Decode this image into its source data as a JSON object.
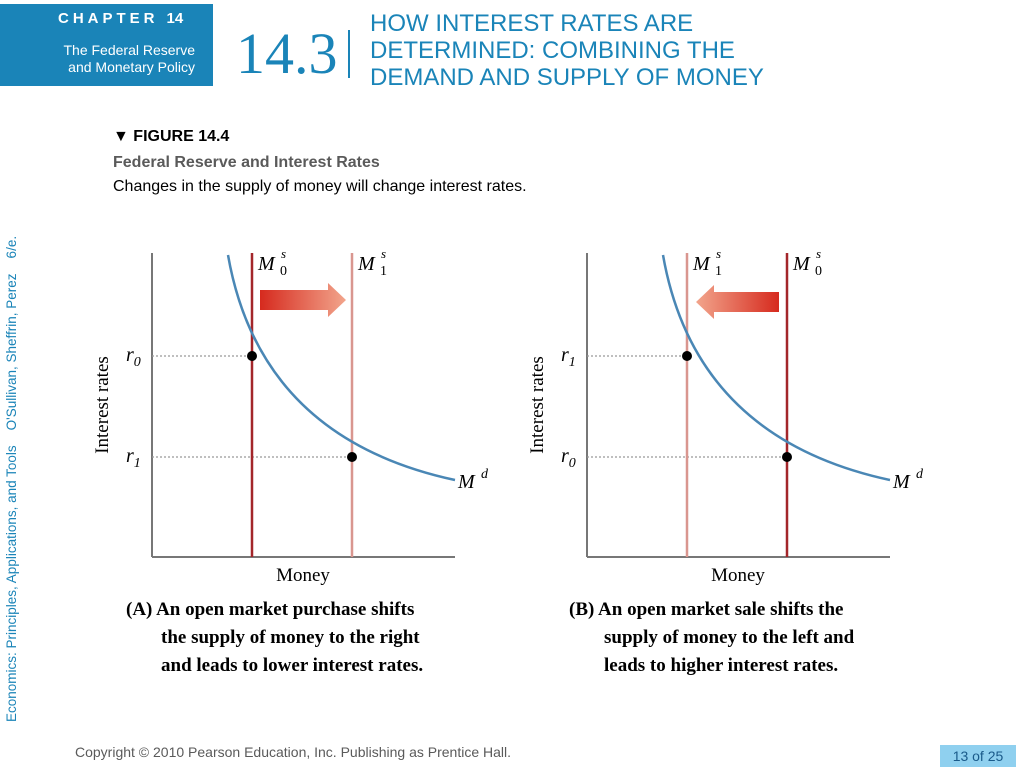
{
  "header": {
    "chapter_label": "CHAPTER",
    "chapter_number": "14",
    "chapter_title_line1": "The Federal Reserve",
    "chapter_title_line2": "and Monetary Policy",
    "section_number": "14.3",
    "section_title_line1": "HOW INTEREST RATES ARE",
    "section_title_line2": "DETERMINED: COMBINING THE",
    "section_title_line3": "DEMAND AND SUPPLY OF MONEY"
  },
  "sidebar": {
    "book_credit": "Economics: Principles, Applications, and Tools    O'Sullivan, Sheffrin, Perez    6/e."
  },
  "figure": {
    "label": "FIGURE 14.4",
    "title": "Federal Reserve and Interest Rates",
    "caption": "Changes in the supply of money will change interest rates."
  },
  "panels": [
    {
      "id": "A",
      "y_axis_label": "Interest rates",
      "x_axis_label": "Money",
      "upper_rate": {
        "symbol": "r",
        "sub": "0"
      },
      "lower_rate": {
        "symbol": "r",
        "sub": "1"
      },
      "left_supply": {
        "symbol": "M",
        "sup": "s",
        "sub": "0"
      },
      "right_supply": {
        "symbol": "M",
        "sup": "s",
        "sub": "1"
      },
      "demand": {
        "symbol": "M",
        "sup": "d"
      },
      "shift_direction": "right",
      "caption_line1": "(A) An open market purchase shifts",
      "caption_line2": "the supply of money to the right",
      "caption_line3": "and leads to lower interest rates."
    },
    {
      "id": "B",
      "y_axis_label": "Interest rates",
      "x_axis_label": "Money",
      "upper_rate": {
        "symbol": "r",
        "sub": "1"
      },
      "lower_rate": {
        "symbol": "r",
        "sub": "0"
      },
      "left_supply": {
        "symbol": "M",
        "sup": "s",
        "sub": "1"
      },
      "right_supply": {
        "symbol": "M",
        "sup": "s",
        "sub": "0"
      },
      "demand": {
        "symbol": "M",
        "sup": "d"
      },
      "shift_direction": "left",
      "caption_line1": "(B) An open market sale shifts the",
      "caption_line2": "supply of money to the left and",
      "caption_line3": "leads to higher interest rates."
    }
  ],
  "footer": {
    "copyright": "Copyright © 2010 Pearson Education, Inc. Publishing as Prentice Hall.",
    "page_indicator": "13 of 25"
  },
  "colors": {
    "brand_blue": "#1a84b8",
    "demand_curve": "#4a87b5",
    "supply_dark": "#a3262a",
    "supply_light": "#d9968f",
    "arrow_fill": "#d9402e"
  }
}
